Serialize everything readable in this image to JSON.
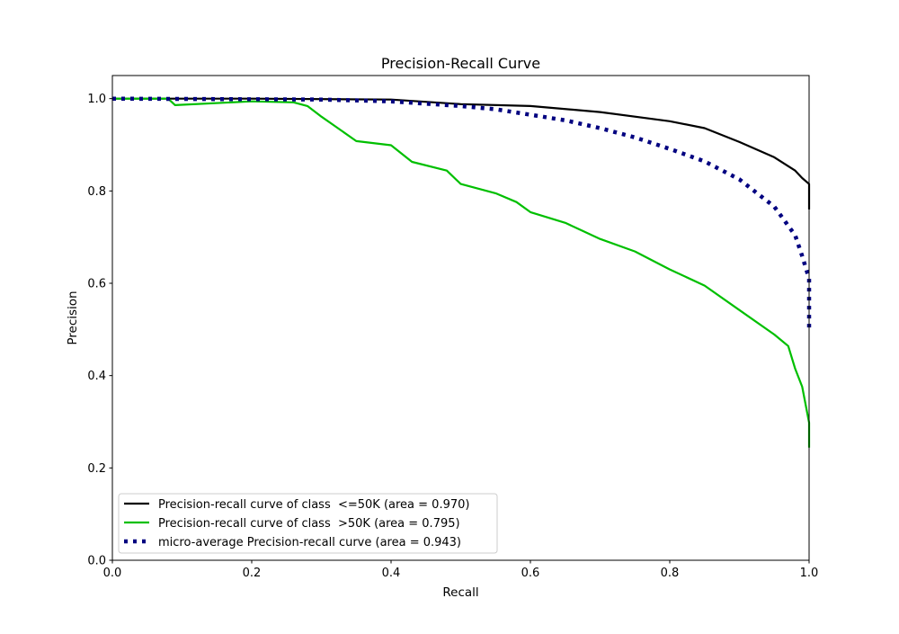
{
  "chart_data": {
    "type": "line",
    "title": "Precision-Recall Curve",
    "xlabel": "Recall",
    "ylabel": "Precision",
    "xlim": [
      0,
      1.0
    ],
    "ylim": [
      0,
      1.05
    ],
    "xticks": [
      "0.0",
      "0.2",
      "0.4",
      "0.6",
      "0.8",
      "1.0"
    ],
    "yticks": [
      "0.0",
      "0.2",
      "0.4",
      "0.6",
      "0.8",
      "1.0"
    ],
    "grid": false,
    "legend_position": "lower-left",
    "series": [
      {
        "name": "Precision-recall curve of class  <=50K (area = 0.970)",
        "color": "#000000",
        "style": "solid",
        "x": [
          0,
          0.2,
          0.4,
          0.5,
          0.6,
          0.7,
          0.8,
          0.85,
          0.9,
          0.95,
          0.98,
          0.99,
          1.0,
          1.0
        ],
        "y": [
          1.0,
          1.0,
          0.998,
          0.988,
          0.984,
          0.971,
          0.951,
          0.936,
          0.906,
          0.873,
          0.844,
          0.828,
          0.815,
          0.76
        ]
      },
      {
        "name": "Precision-recall curve of class  >50K (area = 0.795)",
        "color": "#00bf00",
        "style": "solid",
        "x": [
          0,
          0.05,
          0.08,
          0.09,
          0.2,
          0.26,
          0.28,
          0.3,
          0.32,
          0.35,
          0.4,
          0.43,
          0.48,
          0.5,
          0.55,
          0.58,
          0.6,
          0.65,
          0.7,
          0.75,
          0.8,
          0.85,
          0.9,
          0.95,
          0.97,
          0.98,
          0.99,
          1.0,
          1.0
        ],
        "y": [
          1.0,
          1.0,
          1.0,
          0.986,
          0.994,
          0.992,
          0.984,
          0.961,
          0.94,
          0.908,
          0.899,
          0.863,
          0.844,
          0.815,
          0.795,
          0.776,
          0.754,
          0.731,
          0.696,
          0.669,
          0.63,
          0.595,
          0.542,
          0.489,
          0.464,
          0.415,
          0.376,
          0.298,
          0.244
        ]
      },
      {
        "name": "micro-average Precision-recall curve (area = 0.943)",
        "color": "#000080",
        "style": "dotted",
        "x": [
          0,
          0.3,
          0.4,
          0.5,
          0.55,
          0.6,
          0.65,
          0.7,
          0.75,
          0.8,
          0.85,
          0.9,
          0.95,
          0.98,
          0.99,
          1.0,
          1.0
        ],
        "y": [
          1.0,
          0.998,
          0.994,
          0.984,
          0.977,
          0.965,
          0.953,
          0.936,
          0.916,
          0.891,
          0.864,
          0.825,
          0.766,
          0.704,
          0.659,
          0.61,
          0.503
        ]
      }
    ]
  }
}
